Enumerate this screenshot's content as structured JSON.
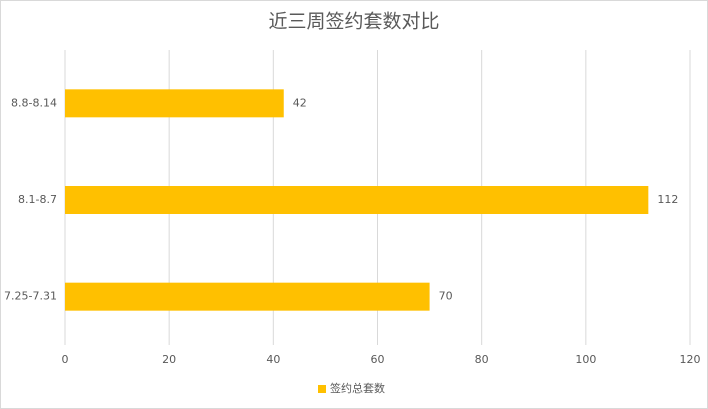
{
  "chart_data": {
    "type": "bar",
    "orientation": "horizontal",
    "title": "近三周签约套数对比",
    "categories": [
      "8.8-8.14",
      "8.1-8.7",
      "7.25-7.31"
    ],
    "series": [
      {
        "name": "签约总套数",
        "color": "#ffc000",
        "values": [
          42,
          112,
          70
        ]
      }
    ],
    "xlim": [
      0,
      120
    ],
    "xticks": [
      0,
      20,
      40,
      60,
      80,
      100,
      120
    ],
    "grid": true,
    "legend": "bottom"
  }
}
